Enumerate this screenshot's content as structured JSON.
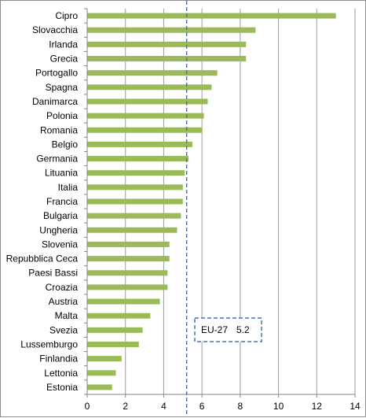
{
  "chart_data": {
    "type": "bar",
    "orientation": "horizontal",
    "title": "",
    "xlabel": "",
    "ylabel": "",
    "categories": [
      "Cipro",
      "Slovacchia",
      "Irlanda",
      "Grecia",
      "Portogallo",
      "Spagna",
      "Danimarca",
      "Polonia",
      "Romania",
      "Belgio",
      "Germania",
      "Lituania",
      "Italia",
      "Francia",
      "Bulgaria",
      "Ungheria",
      "Slovenia",
      "Repubblica Ceca",
      "Paesi Bassi",
      "Croazia",
      "Austria",
      "Malta",
      "Svezia",
      "Lussemburgo",
      "Finlandia",
      "Lettonia",
      "Estonia"
    ],
    "values": [
      13.0,
      8.8,
      8.3,
      8.3,
      6.8,
      6.5,
      6.3,
      6.1,
      6.0,
      5.5,
      5.3,
      5.1,
      5.0,
      5.0,
      4.9,
      4.7,
      4.3,
      4.3,
      4.2,
      4.2,
      3.8,
      3.3,
      2.9,
      2.7,
      1.8,
      1.5,
      1.3
    ],
    "xlim": [
      0,
      14
    ],
    "xticks": [
      "0",
      "2",
      "4",
      "6",
      "8",
      "10",
      "12",
      "14"
    ],
    "grid": "vertical",
    "legend": "none",
    "bar_color": "#9bbb59",
    "reference_line": {
      "value": 5.2,
      "label": "EU-27",
      "value_label": "5.2",
      "color": "#4472c4",
      "style": "dashed"
    }
  }
}
